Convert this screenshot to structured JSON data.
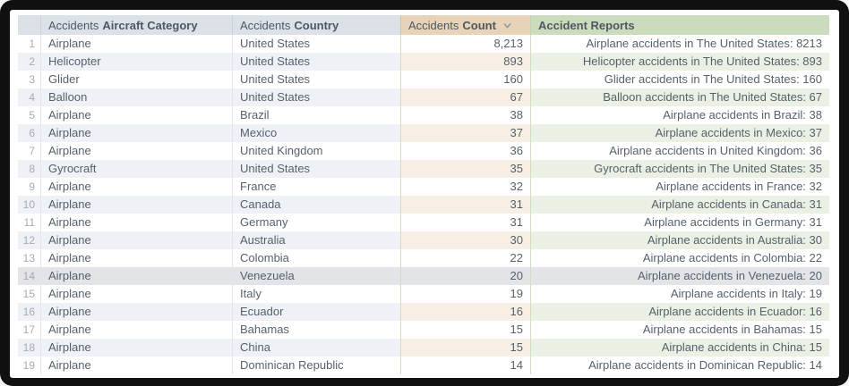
{
  "table": {
    "columns": [
      {
        "name": "row-number",
        "prefix": "",
        "label": ""
      },
      {
        "name": "aircraft-category",
        "prefix": "Accidents",
        "label": "Aircraft Category"
      },
      {
        "name": "country",
        "prefix": "Accidents",
        "label": "Country"
      },
      {
        "name": "count",
        "prefix": "Accidents",
        "label": "Count",
        "sort_icon": "chevron-down-icon",
        "sort_state": "descending"
      },
      {
        "name": "reports",
        "prefix": "",
        "label": "Accident Reports"
      }
    ],
    "highlighted_row": 14,
    "rows": [
      {
        "n": 1,
        "category": "Airplane",
        "country": "United States",
        "count": "8,213",
        "report": "Airplane accidents in The United States: 8213"
      },
      {
        "n": 2,
        "category": "Helicopter",
        "country": "United States",
        "count": "893",
        "report": "Helicopter accidents in The United States: 893"
      },
      {
        "n": 3,
        "category": "Glider",
        "country": "United States",
        "count": "160",
        "report": "Glider accidents in The United States: 160"
      },
      {
        "n": 4,
        "category": "Balloon",
        "country": "United States",
        "count": "67",
        "report": "Balloon accidents in The United States: 67"
      },
      {
        "n": 5,
        "category": "Airplane",
        "country": "Brazil",
        "count": "38",
        "report": "Airplane accidents in Brazil: 38"
      },
      {
        "n": 6,
        "category": "Airplane",
        "country": "Mexico",
        "count": "37",
        "report": "Airplane accidents in Mexico: 37"
      },
      {
        "n": 7,
        "category": "Airplane",
        "country": "United Kingdom",
        "count": "36",
        "report": "Airplane accidents in United Kingdom: 36"
      },
      {
        "n": 8,
        "category": "Gyrocraft",
        "country": "United States",
        "count": "35",
        "report": "Gyrocraft accidents in The United States: 35"
      },
      {
        "n": 9,
        "category": "Airplane",
        "country": "France",
        "count": "32",
        "report": "Airplane accidents in France: 32"
      },
      {
        "n": 10,
        "category": "Airplane",
        "country": "Canada",
        "count": "31",
        "report": "Airplane accidents in Canada: 31"
      },
      {
        "n": 11,
        "category": "Airplane",
        "country": "Germany",
        "count": "31",
        "report": "Airplane accidents in Germany: 31"
      },
      {
        "n": 12,
        "category": "Airplane",
        "country": "Australia",
        "count": "30",
        "report": "Airplane accidents in Australia: 30"
      },
      {
        "n": 13,
        "category": "Airplane",
        "country": "Colombia",
        "count": "22",
        "report": "Airplane accidents in Colombia: 22"
      },
      {
        "n": 14,
        "category": "Airplane",
        "country": "Venezuela",
        "count": "20",
        "report": "Airplane accidents in Venezuela: 20"
      },
      {
        "n": 15,
        "category": "Airplane",
        "country": "Italy",
        "count": "19",
        "report": "Airplane accidents in Italy: 19"
      },
      {
        "n": 16,
        "category": "Airplane",
        "country": "Ecuador",
        "count": "16",
        "report": "Airplane accidents in Ecuador: 16"
      },
      {
        "n": 17,
        "category": "Airplane",
        "country": "Bahamas",
        "count": "15",
        "report": "Airplane accidents in Bahamas: 15"
      },
      {
        "n": 18,
        "category": "Airplane",
        "country": "China",
        "count": "15",
        "report": "Airplane accidents in China: 15"
      },
      {
        "n": 19,
        "category": "Airplane",
        "country": "Dominican Republic",
        "count": "14",
        "report": "Airplane accidents in Dominican Republic: 14"
      }
    ]
  },
  "colors": {
    "frame": "#101010",
    "header_default": "#dce1e8",
    "header_count": "#e7d3b8",
    "header_reports": "#cbdcbd",
    "row_even_default": "#eef1f5",
    "row_even_count": "#f7efe3",
    "row_even_reports": "#eaf0e3",
    "row_highlight": "#e2e4e7",
    "cell_text": "#57616c",
    "row_number_text": "#a3abb3"
  }
}
